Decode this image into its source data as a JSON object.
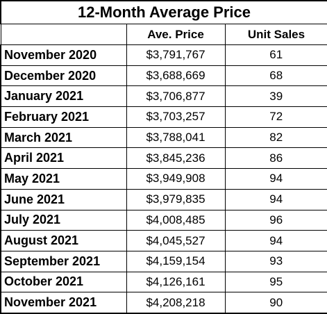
{
  "chart_data": {
    "type": "table",
    "title": "12-Month Average Price",
    "columns": [
      "",
      "Ave. Price",
      "Unit Sales"
    ],
    "rows": [
      {
        "month": "November 2020",
        "price": "$3,791,767",
        "units": "61"
      },
      {
        "month": "December 2020",
        "price": "$3,688,669",
        "units": "68"
      },
      {
        "month": "January 2021",
        "price": "$3,706,877",
        "units": "39"
      },
      {
        "month": "February 2021",
        "price": "$3,703,257",
        "units": "72"
      },
      {
        "month": "March 2021",
        "price": "$3,788,041",
        "units": "82"
      },
      {
        "month": "April 2021",
        "price": "$3,845,236",
        "units": "86"
      },
      {
        "month": "May 2021",
        "price": "$3,949,908",
        "units": "94"
      },
      {
        "month": "June 2021",
        "price": "$3,979,835",
        "units": "94"
      },
      {
        "month": "July 2021",
        "price": "$4,008,485",
        "units": "96"
      },
      {
        "month": "August 2021",
        "price": "$4,045,527",
        "units": "94"
      },
      {
        "month": "September 2021",
        "price": "$4,159,154",
        "units": "93"
      },
      {
        "month": "October 2021",
        "price": "$4,126,161",
        "units": "95"
      },
      {
        "month": "November 2021",
        "price": "$4,208,218",
        "units": "90"
      }
    ]
  }
}
